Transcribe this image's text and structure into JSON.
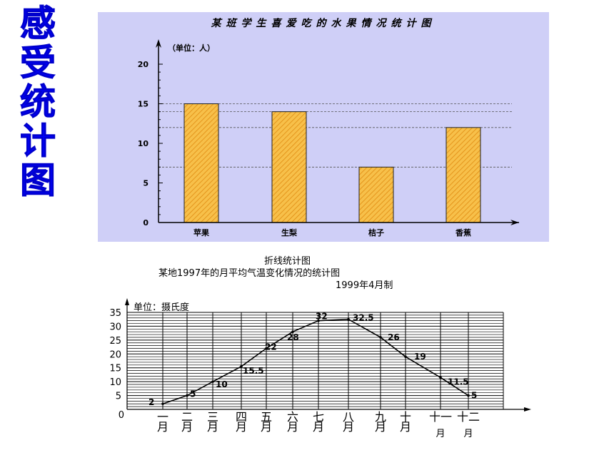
{
  "side_title": [
    "感",
    "受",
    "统",
    "计",
    "图"
  ],
  "chart_data": [
    {
      "type": "bar",
      "title": "某班学生喜爱吃的水果情况统计图",
      "unit_label": "（单位：人）",
      "categories": [
        "苹果",
        "生梨",
        "桔子",
        "香蕉"
      ],
      "values": [
        15,
        14,
        7,
        12
      ],
      "ylim": [
        0,
        20
      ],
      "yticks": [
        0,
        5,
        10,
        15,
        20
      ],
      "bar_color": "#f5b83a",
      "background": "#cfcff7",
      "reference_lines": "dashed at each bar value"
    },
    {
      "type": "line",
      "title": "折线统计图",
      "subtitle": "某地1997年的月平均气温变化情况的统计图",
      "note": "1999年4月制",
      "unit_label": "单位：摄氏度",
      "categories": [
        "一月",
        "二月",
        "三月",
        "四月",
        "五月",
        "六月",
        "七月",
        "八月",
        "九月",
        "十月",
        "十一月",
        "十二月"
      ],
      "values": [
        2,
        5,
        10,
        15.5,
        22,
        28,
        32,
        32.5,
        26,
        19,
        11.5,
        5
      ],
      "data_labels": [
        "2",
        "5",
        "10",
        "15.5",
        "22",
        "28",
        "32",
        "32.5",
        "26",
        "19",
        "11.5",
        "5"
      ],
      "ylim": [
        0,
        35
      ],
      "yticks": [
        0,
        5,
        10,
        15,
        20,
        25,
        30,
        35
      ],
      "grid": true,
      "line_color": "#000000"
    }
  ]
}
